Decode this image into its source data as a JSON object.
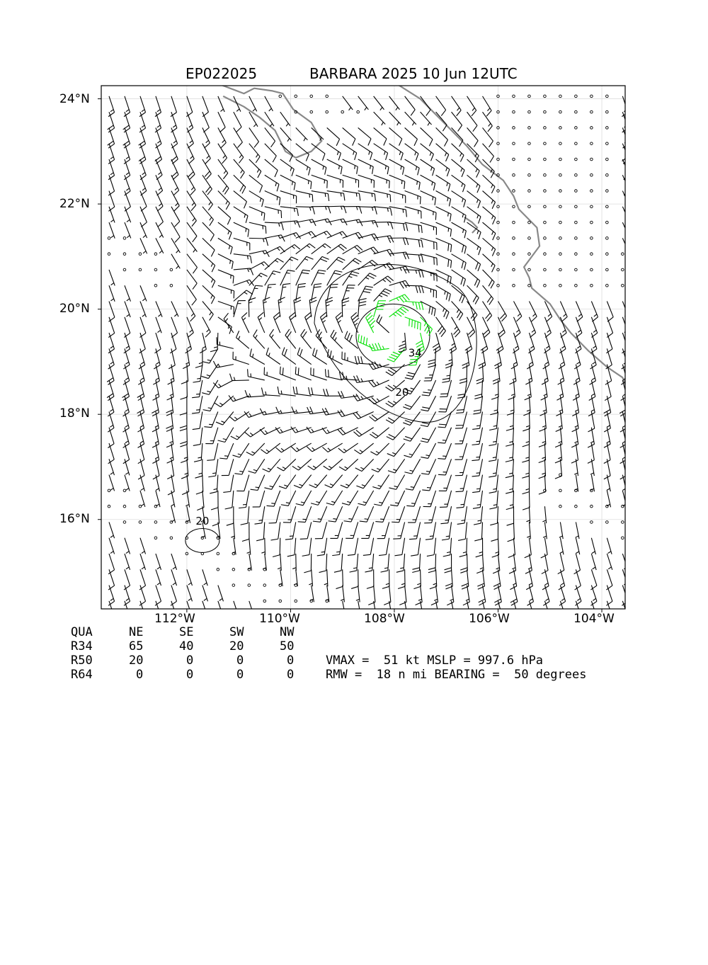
{
  "title": {
    "storm_id": "EP022025",
    "storm_name_time": "BARBARA 2025 10 Jun 12UTC"
  },
  "map": {
    "lon_range": [
      -113.65,
      -103.55
    ],
    "lat_range": [
      14.3,
      24.25
    ],
    "center": {
      "lon": -108.0,
      "lat": 19.6
    },
    "y_ticks": [
      "24°N",
      "22°N",
      "20°N",
      "18°N",
      "16°N"
    ],
    "y_tick_values": [
      24,
      22,
      20,
      18,
      16
    ],
    "x_ticks": [
      "112°W",
      "110°W",
      "108°W",
      "106°W",
      "104°W"
    ],
    "x_tick_values": [
      -112,
      -110,
      -108,
      -106,
      -104
    ],
    "contour_labels": [
      {
        "text": "34",
        "lon": -107.6,
        "lat": 19.1
      },
      {
        "text": "20",
        "lon": -107.85,
        "lat": 18.35
      },
      {
        "text": "20",
        "lon": -111.7,
        "lat": 15.9
      }
    ],
    "colors": {
      "barb_default": "#000000",
      "barb_34kt": "#00e000",
      "barb_50kt": "#e0b000",
      "coastline": "#888888",
      "frame": "#000000"
    }
  },
  "radii_table": {
    "header": [
      "QUA",
      "NE",
      "SE",
      "SW",
      "NW"
    ],
    "rows": [
      [
        "R34",
        "65",
        "40",
        "20",
        "50"
      ],
      [
        "R50",
        "20",
        "0",
        "0",
        "0"
      ],
      [
        "R64",
        "0",
        "0",
        "0",
        "0"
      ]
    ]
  },
  "info": {
    "line1": "VMAX =  51 kt MSLP = 997.6 hPa",
    "line2": "RMW =  18 n mi BEARING =  50 degrees"
  }
}
